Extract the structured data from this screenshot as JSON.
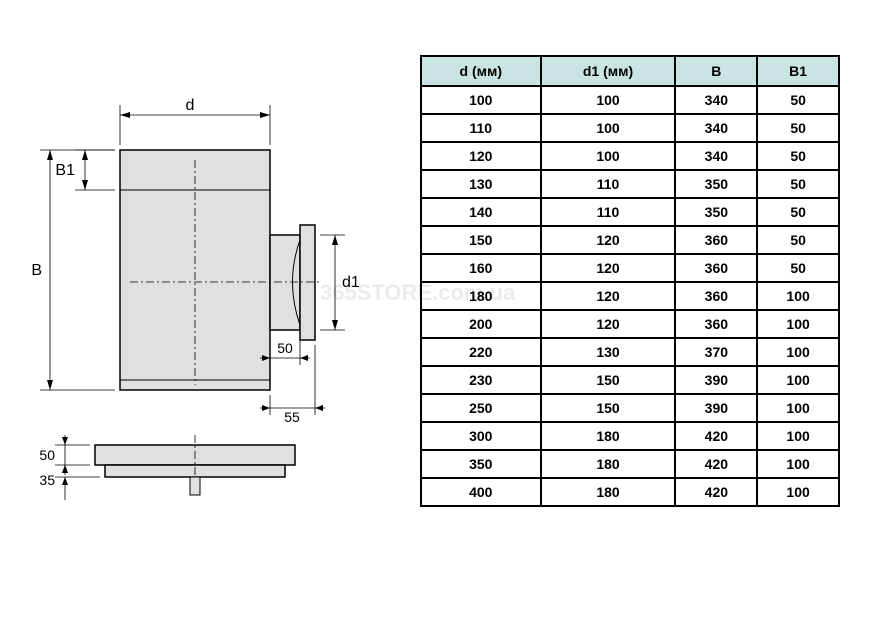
{
  "watermark": "365STORE.com.ua",
  "diagram": {
    "labels": {
      "d": "d",
      "d1": "d1",
      "B": "B",
      "B1": "B1",
      "dim50_side": "50",
      "dim55": "55",
      "dim50_bottom": "50",
      "dim35": "35"
    },
    "colors": {
      "fill": "#e0e0e0",
      "stroke": "#000000",
      "dim_line": "#000000"
    }
  },
  "table": {
    "columns": [
      "d (мм)",
      "d1 (мм)",
      "B",
      "B1"
    ],
    "rows": [
      [
        "100",
        "100",
        "340",
        "50"
      ],
      [
        "110",
        "100",
        "340",
        "50"
      ],
      [
        "120",
        "100",
        "340",
        "50"
      ],
      [
        "130",
        "110",
        "350",
        "50"
      ],
      [
        "140",
        "110",
        "350",
        "50"
      ],
      [
        "150",
        "120",
        "360",
        "50"
      ],
      [
        "160",
        "120",
        "360",
        "50"
      ],
      [
        "180",
        "120",
        "360",
        "100"
      ],
      [
        "200",
        "120",
        "360",
        "100"
      ],
      [
        "220",
        "130",
        "370",
        "100"
      ],
      [
        "230",
        "150",
        "390",
        "100"
      ],
      [
        "250",
        "150",
        "390",
        "100"
      ],
      [
        "300",
        "180",
        "420",
        "100"
      ],
      [
        "350",
        "180",
        "420",
        "100"
      ],
      [
        "400",
        "180",
        "420",
        "100"
      ]
    ],
    "header_bg": "#c9e4e2",
    "cell_bg": "#ffffff",
    "border_color": "#000000",
    "font_size": 14
  }
}
